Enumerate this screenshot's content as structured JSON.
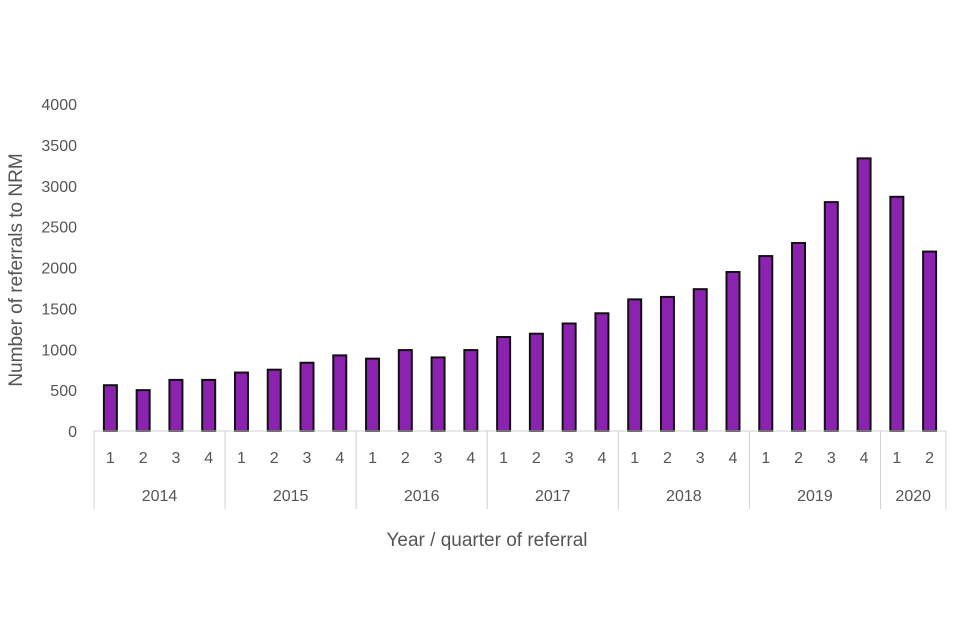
{
  "chart_data": {
    "type": "bar",
    "title": "",
    "xlabel": "Year / quarter of referral",
    "ylabel": "Number of referrals to NRM",
    "ylim": [
      0,
      4000
    ],
    "yticks": [
      0,
      500,
      1000,
      1500,
      2000,
      2500,
      3000,
      3500,
      4000
    ],
    "grid": false,
    "legend": "none",
    "bar_color": "#8b22b0",
    "groups": [
      {
        "label": "2014",
        "quarters": [
          "1",
          "2",
          "3",
          "4"
        ],
        "values": [
          560,
          500,
          625,
          625
        ]
      },
      {
        "label": "2015",
        "quarters": [
          "1",
          "2",
          "3",
          "4"
        ],
        "values": [
          715,
          750,
          835,
          925
        ]
      },
      {
        "label": "2016",
        "quarters": [
          "1",
          "2",
          "3",
          "4"
        ],
        "values": [
          885,
          990,
          900,
          990
        ]
      },
      {
        "label": "2017",
        "quarters": [
          "1",
          "2",
          "3",
          "4"
        ],
        "values": [
          1150,
          1190,
          1315,
          1440
        ]
      },
      {
        "label": "2018",
        "quarters": [
          "1",
          "2",
          "3",
          "4"
        ],
        "values": [
          1610,
          1640,
          1735,
          1945
        ]
      },
      {
        "label": "2019",
        "quarters": [
          "1",
          "2",
          "3",
          "4"
        ],
        "values": [
          2140,
          2300,
          2800,
          3335
        ]
      },
      {
        "label": "2020",
        "quarters": [
          "1",
          "2"
        ],
        "values": [
          2865,
          2195
        ]
      }
    ]
  }
}
